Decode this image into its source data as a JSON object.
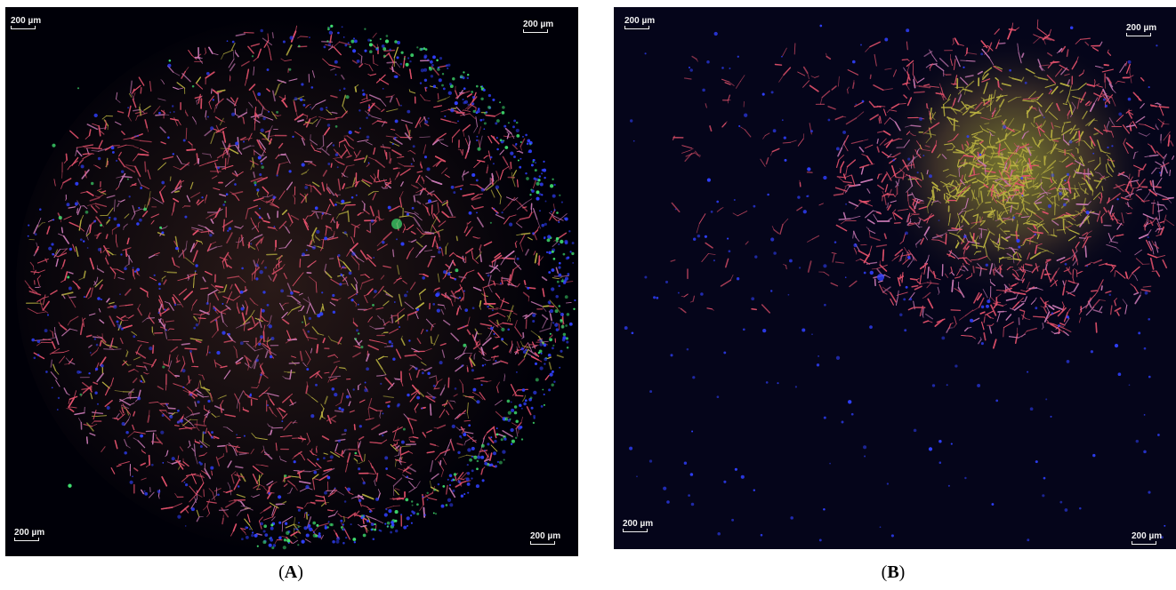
{
  "panels": [
    {
      "id": "A",
      "caption_open": "(",
      "caption_letter": "A",
      "caption_close": ")",
      "scale_labels": {
        "top_left": "200 µm",
        "top_right": "200 µm",
        "bottom_left": "200 µm",
        "bottom_right": "200 µm"
      }
    },
    {
      "id": "B",
      "caption_open": "(",
      "caption_letter": "B",
      "caption_close": ")",
      "scale_labels": {
        "top_left": "200 µm",
        "top_right": "200 µm",
        "bottom_left": "200 µm",
        "bottom_right": "200 µm"
      }
    }
  ],
  "colors": {
    "background": "#000008",
    "cell_red": "#e0506a",
    "cell_pink": "#c878b4",
    "nucleus_blue": "#3040ff",
    "marker_green": "#40e070",
    "cluster_yellow": "#b8b040"
  }
}
